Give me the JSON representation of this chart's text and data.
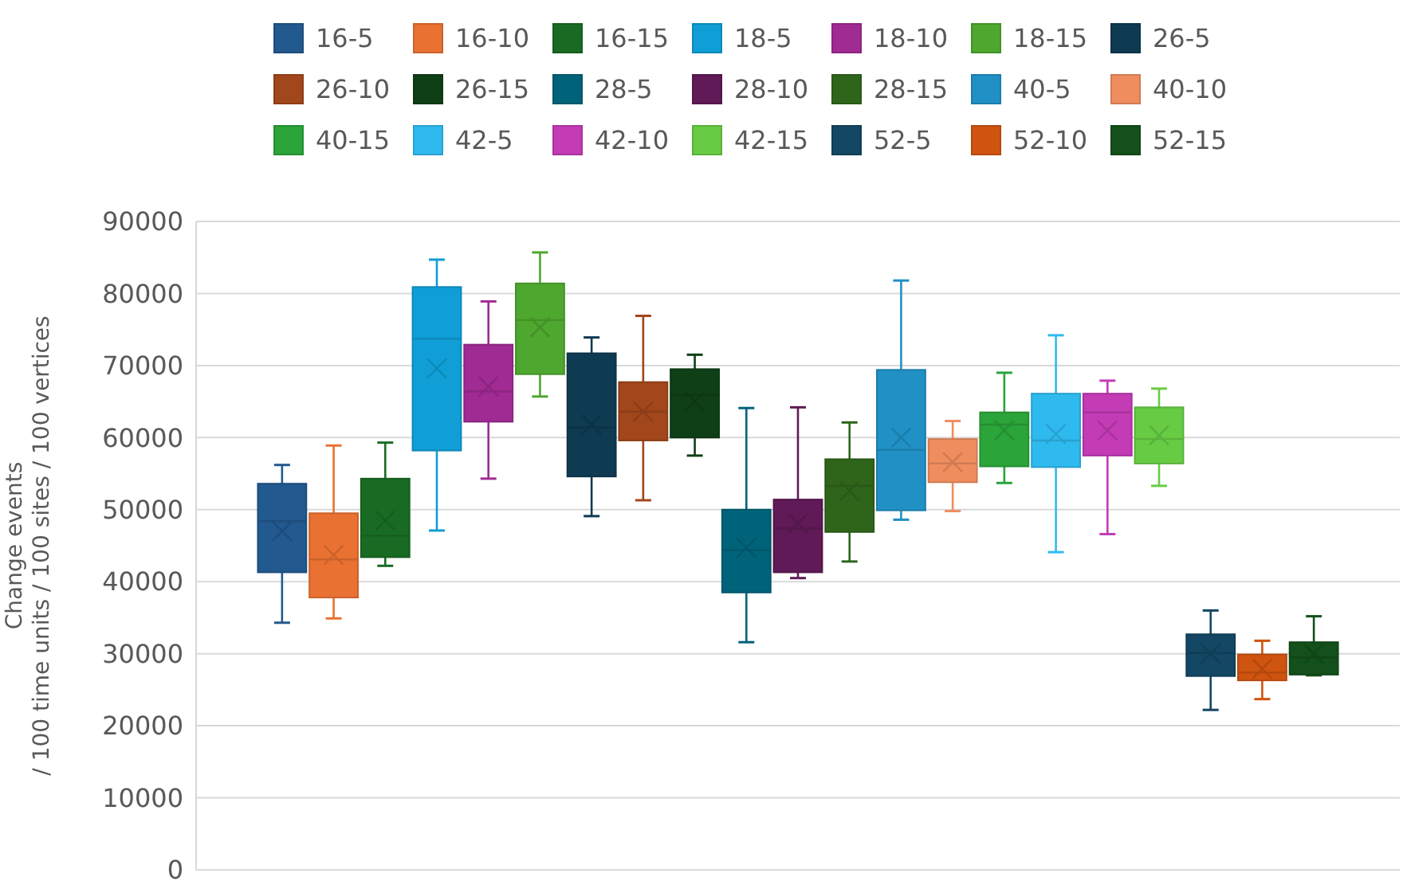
{
  "chart_data": {
    "type": "box",
    "ylabel": "Change events\n/ 100 time units / 100 sites / 100 vertices",
    "categories": [
      null
    ],
    "ylim": [
      0,
      90000
    ],
    "yticks": [
      0,
      10000,
      20000,
      30000,
      40000,
      50000,
      60000,
      70000,
      80000,
      90000
    ],
    "grid": "y",
    "legend": "top",
    "series": [
      {
        "name": "16-5",
        "color": "#22598f",
        "boxes": [
          {
            "low": 34300,
            "q1": 41300,
            "median": 48400,
            "q3": 53600,
            "high": 56200,
            "mean": 47000
          }
        ]
      },
      {
        "name": "16-10",
        "color": "#e97132",
        "boxes": [
          {
            "low": 34900,
            "q1": 37800,
            "median": 43100,
            "q3": 49500,
            "high": 58900,
            "mean": 43700
          }
        ]
      },
      {
        "name": "16-15",
        "color": "#196b24",
        "boxes": [
          {
            "low": 42200,
            "q1": 43400,
            "median": 46400,
            "q3": 54300,
            "high": 59300,
            "mean": 48500
          }
        ]
      },
      {
        "name": "18-5",
        "color": "#0f9ed5",
        "boxes": [
          {
            "low": 47100,
            "q1": 58200,
            "median": 73700,
            "q3": 80900,
            "high": 84700,
            "mean": 69600
          }
        ]
      },
      {
        "name": "18-10",
        "color": "#a02b93",
        "boxes": [
          {
            "low": 54300,
            "q1": 62200,
            "median": 66400,
            "q3": 72900,
            "high": 78900,
            "mean": 67100
          }
        ]
      },
      {
        "name": "18-15",
        "color": "#4ea72e",
        "boxes": [
          {
            "low": 65700,
            "q1": 68800,
            "median": 76300,
            "q3": 81400,
            "high": 85700,
            "mean": 75300
          }
        ]
      },
      {
        "name": "26-5",
        "color": "#0e3a52",
        "boxes": [
          {
            "low": 49100,
            "q1": 54600,
            "median": 61400,
            "q3": 71700,
            "high": 73900,
            "mean": 61800
          }
        ]
      },
      {
        "name": "26-10",
        "color": "#a2461b",
        "boxes": [
          {
            "low": 51300,
            "q1": 59600,
            "median": 63600,
            "q3": 67700,
            "high": 76900,
            "mean": 63600
          }
        ]
      },
      {
        "name": "26-15",
        "color": "#0f3f16",
        "boxes": [
          {
            "low": 57500,
            "q1": 60000,
            "median": 65900,
            "q3": 69500,
            "high": 71500,
            "mean": 65000
          }
        ]
      },
      {
        "name": "28-5",
        "color": "#00637a",
        "boxes": [
          {
            "low": 31600,
            "q1": 38500,
            "median": 44400,
            "q3": 50000,
            "high": 64100,
            "mean": 44700
          }
        ]
      },
      {
        "name": "28-10",
        "color": "#5f1a57",
        "boxes": [
          {
            "low": 40500,
            "q1": 41300,
            "median": 47400,
            "q3": 51400,
            "high": 64200,
            "mean": 48100
          }
        ]
      },
      {
        "name": "28-15",
        "color": "#2f651b",
        "boxes": [
          {
            "low": 42800,
            "q1": 46900,
            "median": 53300,
            "q3": 57000,
            "high": 62100,
            "mean": 52600
          }
        ]
      },
      {
        "name": "40-5",
        "color": "#2090c5",
        "boxes": [
          {
            "low": 48600,
            "q1": 49900,
            "median": 58300,
            "q3": 69400,
            "high": 81800,
            "mean": 60000
          }
        ]
      },
      {
        "name": "40-10",
        "color": "#ef8d5f",
        "boxes": [
          {
            "low": 49800,
            "q1": 53800,
            "median": 56400,
            "q3": 59800,
            "high": 62300,
            "mean": 56600
          }
        ]
      },
      {
        "name": "40-15",
        "color": "#2ba43a",
        "boxes": [
          {
            "low": 53700,
            "q1": 56000,
            "median": 61800,
            "q3": 63500,
            "high": 69000,
            "mean": 61000
          }
        ]
      },
      {
        "name": "42-5",
        "color": "#2fbaef",
        "boxes": [
          {
            "low": 44100,
            "q1": 55900,
            "median": 59600,
            "q3": 66100,
            "high": 74200,
            "mean": 60500
          }
        ]
      },
      {
        "name": "42-10",
        "color": "#c33bb5",
        "boxes": [
          {
            "low": 46600,
            "q1": 57500,
            "median": 63500,
            "q3": 66100,
            "high": 67900,
            "mean": 61000
          }
        ]
      },
      {
        "name": "42-15",
        "color": "#67cc43",
        "boxes": [
          {
            "low": 53300,
            "q1": 56400,
            "median": 59800,
            "q3": 64200,
            "high": 66800,
            "mean": 60300
          }
        ]
      },
      {
        "name": "52-5",
        "color": "#134763",
        "boxes": [
          {
            "low": 22200,
            "q1": 26900,
            "median": 30100,
            "q3": 32700,
            "high": 36000,
            "mean": 30000
          }
        ]
      },
      {
        "name": "52-10",
        "color": "#cf5410",
        "boxes": [
          {
            "low": 23700,
            "q1": 26300,
            "median": 27400,
            "q3": 29900,
            "high": 31800,
            "mean": 27900
          }
        ]
      },
      {
        "name": "52-15",
        "color": "#13501b",
        "boxes": [
          {
            "low": 27000,
            "q1": 27100,
            "median": 29500,
            "q3": 31600,
            "high": 35200,
            "mean": 30000
          }
        ]
      }
    ]
  }
}
